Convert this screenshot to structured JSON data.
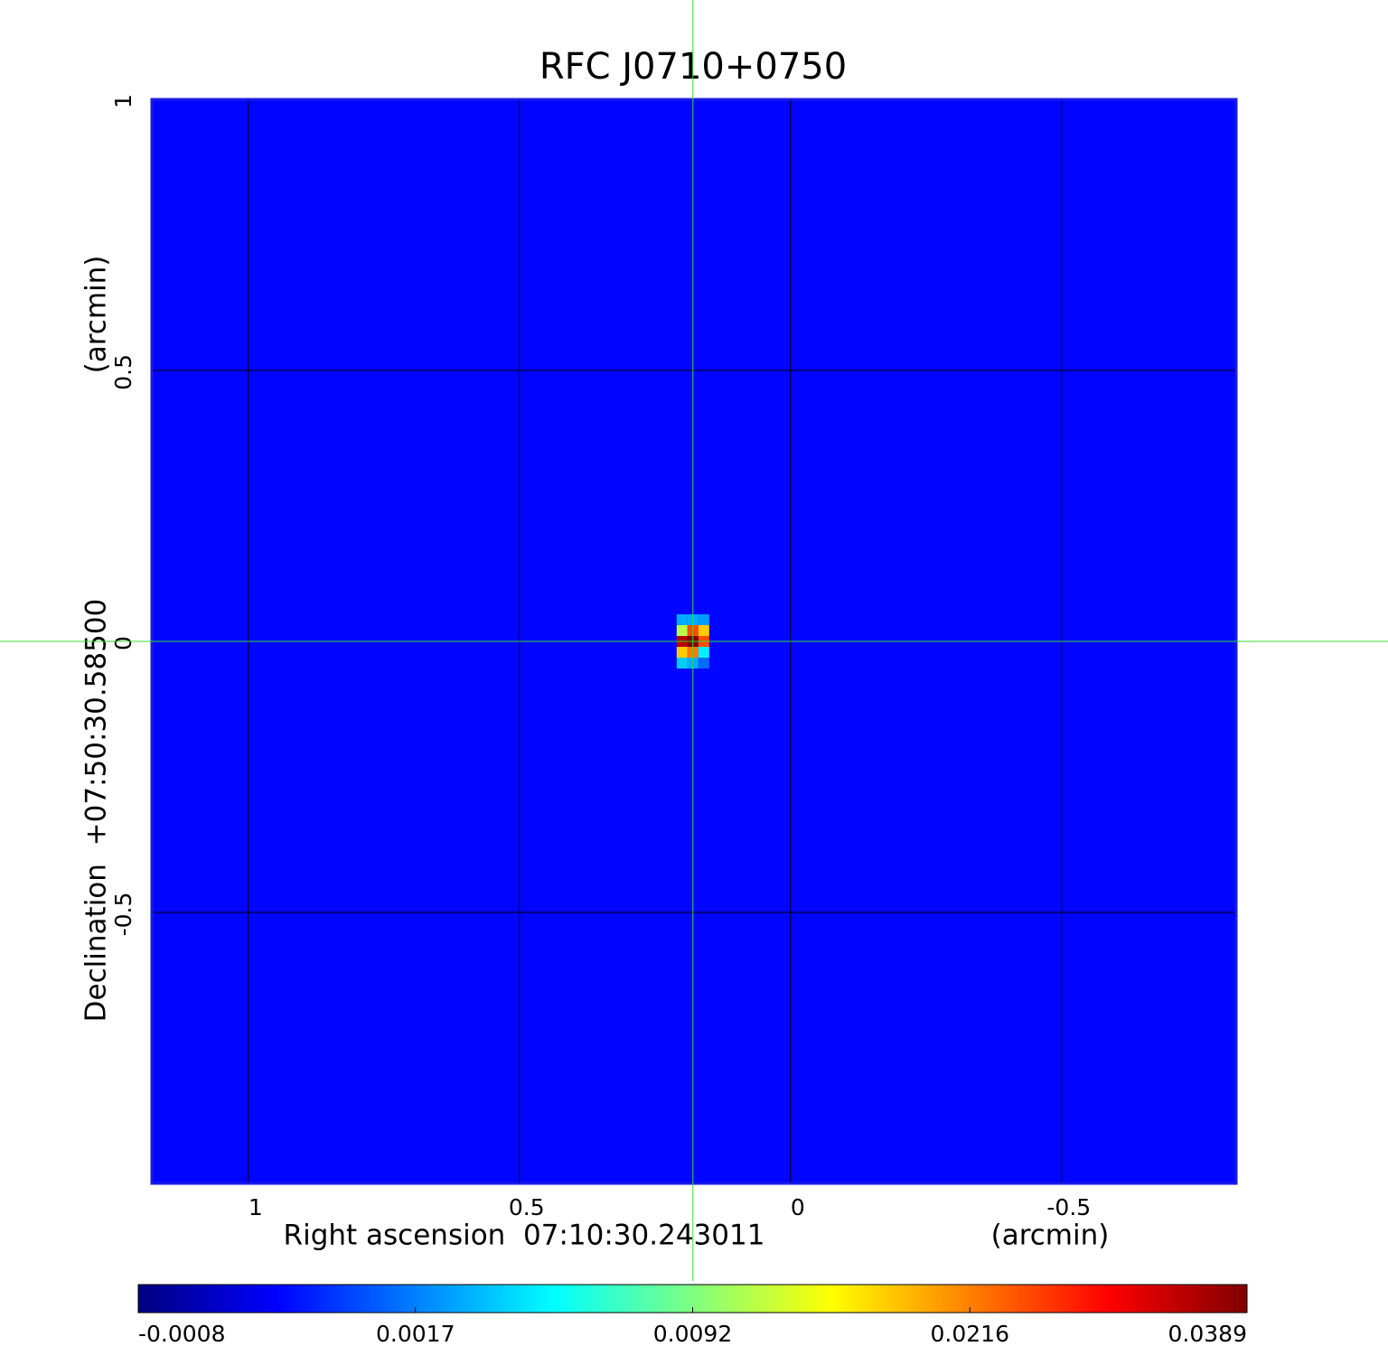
{
  "chart_data": {
    "type": "heatmap",
    "title": "RFC J0710+0750",
    "title_color": "#0b0bd6",
    "x_label": "Right ascension  07:10:30.243011",
    "x_unit_label": "(arcmin)",
    "y_label": "Declination  +07:50:30.58500",
    "y_unit_label": "(arcmin)",
    "xlim": [
      1.178,
      -0.822
    ],
    "ylim": [
      -1.0,
      1.0
    ],
    "xticks": [
      1.0,
      0.5,
      0.0,
      -0.5
    ],
    "yticks": [
      1.0,
      0.5,
      0.0,
      -0.5
    ],
    "grid": true,
    "colormap": "jet",
    "crosshair": [
      0.18,
      0.0
    ],
    "crosshair_color": "#33dd33",
    "background_value": 0.0005,
    "cell_size": 0.02,
    "cells": {
      "x": [
        0.2,
        0.18,
        0.16,
        0.2,
        0.18,
        0.16,
        0.2,
        0.18,
        0.16,
        0.2,
        0.18,
        0.16,
        0.2,
        0.18,
        0.16
      ],
      "y": [
        0.04,
        0.04,
        0.04,
        0.02,
        0.02,
        0.02,
        0.0,
        0.0,
        0.0,
        -0.02,
        -0.02,
        -0.02,
        -0.04,
        -0.04,
        -0.04
      ],
      "values": [
        0.003,
        0.003,
        0.0025,
        0.012,
        0.025,
        0.018,
        0.035,
        0.0389,
        0.025,
        0.018,
        0.022,
        0.005,
        0.004,
        0.003,
        0.0015
      ]
    },
    "colorbar_ticks": [
      -0.0008,
      0.0017,
      0.0092,
      0.0216,
      0.0389
    ]
  }
}
